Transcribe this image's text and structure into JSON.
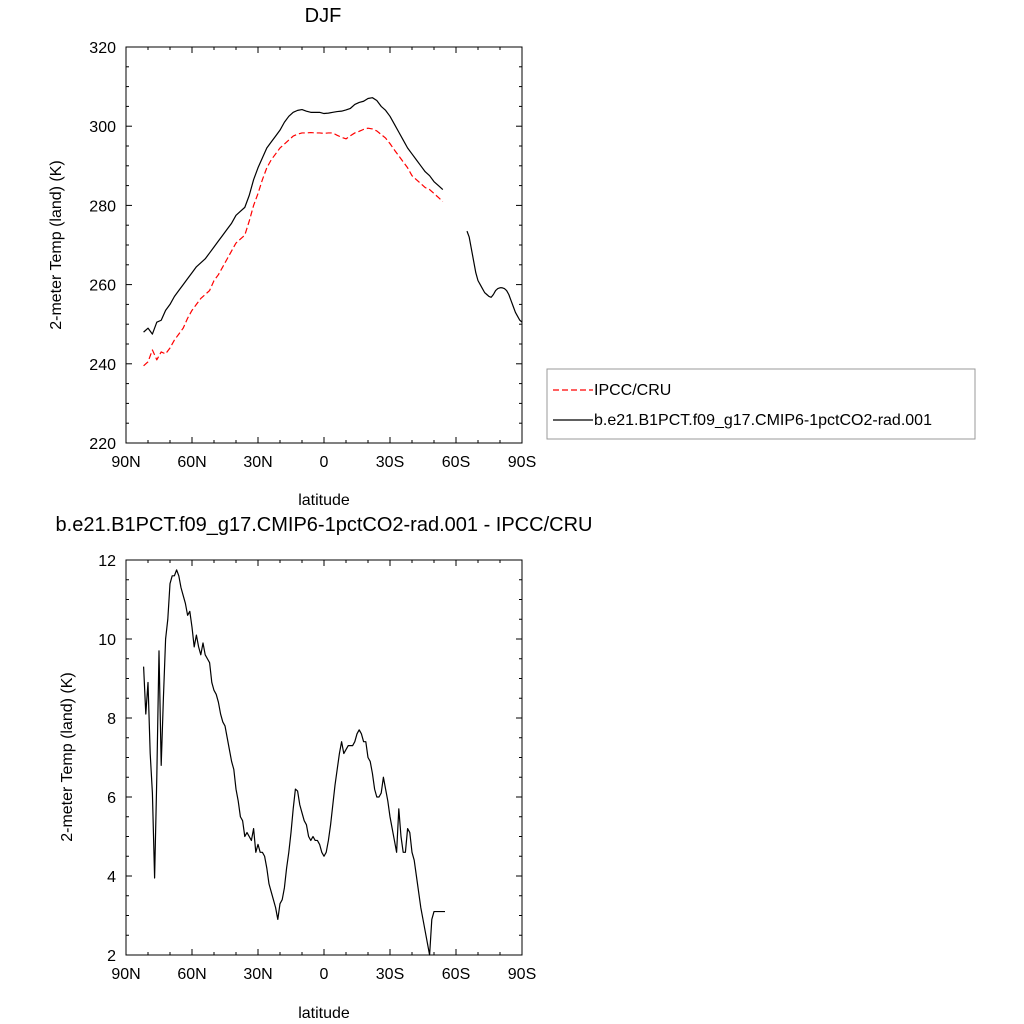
{
  "chart_data": [
    {
      "type": "line",
      "title": "DJF",
      "xlabel": "latitude",
      "ylabel": "2-meter Temp (land) (K)",
      "xlim": [
        -90,
        90
      ],
      "ylim": [
        220,
        320
      ],
      "x_ticks": [
        {
          "value": -90,
          "label": "90N"
        },
        {
          "value": -60,
          "label": "60N"
        },
        {
          "value": -30,
          "label": "30N"
        },
        {
          "value": 0,
          "label": "0"
        },
        {
          "value": 30,
          "label": "30S"
        },
        {
          "value": 60,
          "label": "60S"
        },
        {
          "value": 90,
          "label": "90S"
        }
      ],
      "y_ticks": [
        220,
        240,
        260,
        280,
        300,
        320
      ],
      "legend": "right",
      "grid": false,
      "series": [
        {
          "name": "IPCC/CRU",
          "color": "#ff0000",
          "style": "dashed",
          "x": [
            -82,
            -80,
            -78,
            -76,
            -74,
            -72,
            -70,
            -68,
            -66,
            -64,
            -62,
            -60,
            -58,
            -56,
            -54,
            -52,
            -50,
            -48,
            -46,
            -44,
            -42,
            -40,
            -38,
            -36,
            -34,
            -32,
            -30,
            -28,
            -26,
            -24,
            -22,
            -20,
            -18,
            -16,
            -14,
            -12,
            -10,
            -8,
            -6,
            -4,
            -2,
            0,
            2,
            4,
            6,
            8,
            10,
            12,
            14,
            16,
            18,
            20,
            22,
            24,
            26,
            28,
            30,
            32,
            34,
            36,
            38,
            40,
            42,
            44,
            46,
            48,
            50,
            52,
            54
          ],
          "y": [
            239.5,
            240.5,
            243.5,
            241,
            243,
            242.5,
            244,
            246,
            247.5,
            249,
            251.5,
            253.5,
            255,
            256.5,
            257.5,
            258.5,
            261,
            262.5,
            264.5,
            266.5,
            268.5,
            270.5,
            271.5,
            272.5,
            276,
            280,
            283,
            286.5,
            289.5,
            291.5,
            293,
            294.5,
            295.5,
            296.5,
            297.5,
            298,
            298.3,
            298.3,
            298.4,
            298.3,
            298.3,
            298.2,
            298.3,
            298.3,
            297.7,
            297.2,
            296.8,
            297.6,
            298.3,
            298.7,
            299.2,
            299.5,
            299.3,
            298.8,
            297.9,
            297,
            295.6,
            294,
            292.5,
            291,
            289.5,
            287.5,
            286.5,
            285.5,
            284.5,
            284,
            283,
            282,
            281
          ]
        },
        {
          "name": "b.e21.B1PCT.f09_g17.CMIP6-1pctCO2-rad.001",
          "color": "#000000",
          "style": "solid",
          "segments": [
            {
              "x": [
                -82,
                -80,
                -78,
                -76,
                -74,
                -72,
                -70,
                -68,
                -66,
                -64,
                -62,
                -60,
                -58,
                -56,
                -54,
                -52,
                -50,
                -48,
                -46,
                -44,
                -42,
                -40,
                -38,
                -36,
                -34,
                -32,
                -30,
                -28,
                -26,
                -24,
                -22,
                -20,
                -18,
                -16,
                -14,
                -12,
                -10,
                -8,
                -6,
                -4,
                -2,
                0,
                2,
                4,
                6,
                8,
                10,
                12,
                14,
                16,
                18,
                20,
                22,
                24,
                26,
                28,
                30,
                32,
                34,
                36,
                38,
                40,
                42,
                44,
                46,
                48,
                50,
                52,
                54
              ],
              "y": [
                248,
                249,
                247.5,
                250.5,
                251,
                253.5,
                255,
                257,
                258.5,
                260,
                261.5,
                263,
                264.5,
                265.5,
                266.5,
                268,
                269.5,
                271,
                272.5,
                274,
                275.5,
                277.5,
                278.5,
                279.5,
                282.5,
                286.5,
                289.5,
                292,
                294.5,
                296,
                297.5,
                299,
                301,
                302.5,
                303.5,
                304,
                304.2,
                303.8,
                303.5,
                303.5,
                303.5,
                303.2,
                303.3,
                303.5,
                303.7,
                303.8,
                304.1,
                304.5,
                305.5,
                306,
                306.3,
                307,
                307.2,
                306.5,
                305,
                304,
                302.5,
                300.5,
                298.5,
                296.5,
                294.5,
                293,
                291.5,
                290,
                288.5,
                287.5,
                286,
                285,
                284
              ]
            },
            {
              "x": [
                65,
                66,
                67,
                68,
                69,
                70,
                71,
                72,
                73,
                74,
                75,
                76,
                77,
                78,
                79,
                80,
                81,
                82,
                83,
                84,
                85,
                86,
                87,
                88,
                89,
                90
              ],
              "y": [
                273.5,
                272,
                269,
                266,
                263,
                261,
                260,
                259,
                258,
                257.5,
                257,
                256.8,
                257.5,
                258.5,
                259,
                259.2,
                259.2,
                259,
                258.5,
                257.5,
                256,
                254.5,
                253,
                252,
                251,
                250.5
              ]
            }
          ]
        }
      ]
    },
    {
      "type": "line",
      "title": "b.e21.B1PCT.f09_g17.CMIP6-1pctCO2-rad.001 - IPCC/CRU",
      "xlabel": "latitude",
      "ylabel": "2-meter Temp (land) (K)",
      "xlim": [
        -90,
        90
      ],
      "ylim": [
        2,
        12
      ],
      "x_ticks": [
        {
          "value": -90,
          "label": "90N"
        },
        {
          "value": -60,
          "label": "60N"
        },
        {
          "value": -30,
          "label": "30N"
        },
        {
          "value": 0,
          "label": "0"
        },
        {
          "value": 30,
          "label": "30S"
        },
        {
          "value": 60,
          "label": "60S"
        },
        {
          "value": 90,
          "label": "90S"
        }
      ],
      "y_ticks": [
        2,
        4,
        6,
        8,
        10,
        12
      ],
      "grid": false,
      "series": [
        {
          "color": "#000000",
          "style": "solid",
          "x": [
            -82,
            -81,
            -80,
            -79,
            -78,
            -77,
            -76,
            -75,
            -74,
            -73,
            -72,
            -71,
            -70,
            -69,
            -68,
            -67,
            -66,
            -65,
            -64,
            -63,
            -62,
            -61,
            -60,
            -59,
            -58,
            -57,
            -56,
            -55,
            -54,
            -53,
            -52,
            -51,
            -50,
            -49,
            -48,
            -47,
            -46,
            -45,
            -44,
            -43,
            -42,
            -41,
            -40,
            -39,
            -38,
            -37,
            -36,
            -35,
            -34,
            -33,
            -32,
            -31,
            -30,
            -29,
            -28,
            -27,
            -26,
            -25,
            -24,
            -23,
            -22,
            -21,
            -20,
            -19,
            -18,
            -17,
            -16,
            -15,
            -14,
            -13,
            -12,
            -11,
            -10,
            -9,
            -8,
            -7,
            -6,
            -5,
            -4,
            -3,
            -2,
            -1,
            0,
            1,
            2,
            3,
            4,
            5,
            6,
            7,
            8,
            9,
            10,
            11,
            12,
            13,
            14,
            15,
            16,
            17,
            18,
            19,
            20,
            21,
            22,
            23,
            24,
            25,
            26,
            27,
            28,
            29,
            30,
            31,
            32,
            33,
            34,
            35,
            36,
            37,
            38,
            39,
            40,
            41,
            42,
            43,
            44,
            45,
            46,
            47,
            48,
            49,
            50,
            51,
            52,
            53,
            54,
            55
          ],
          "y": [
            9.3,
            8.1,
            8.9,
            7.1,
            6.1,
            3.95,
            6.5,
            9.7,
            6.8,
            8.5,
            10,
            10.5,
            11.4,
            11.6,
            11.6,
            11.75,
            11.6,
            11.3,
            11.1,
            10.9,
            10.6,
            10.7,
            10.3,
            9.8,
            10.1,
            9.8,
            9.6,
            9.9,
            9.6,
            9.5,
            9.4,
            8.9,
            8.7,
            8.6,
            8.4,
            8.1,
            7.9,
            7.8,
            7.5,
            7.2,
            6.9,
            6.7,
            6.2,
            5.9,
            5.5,
            5.4,
            5.0,
            5.1,
            5.0,
            4.9,
            5.2,
            4.6,
            4.8,
            4.6,
            4.6,
            4.5,
            4.2,
            3.8,
            3.6,
            3.4,
            3.2,
            2.9,
            3.3,
            3.4,
            3.7,
            4.2,
            4.6,
            5.1,
            5.7,
            6.2,
            6.15,
            5.8,
            5.6,
            5.4,
            5.3,
            5.0,
            4.9,
            5.0,
            4.9,
            4.9,
            4.8,
            4.6,
            4.5,
            4.6,
            4.9,
            5.3,
            5.8,
            6.3,
            6.7,
            7.1,
            7.4,
            7.1,
            7.2,
            7.3,
            7.3,
            7.3,
            7.4,
            7.6,
            7.7,
            7.6,
            7.4,
            7.4,
            7.0,
            6.9,
            6.6,
            6.2,
            6.0,
            6.0,
            6.1,
            6.5,
            6.2,
            5.9,
            5.5,
            5.2,
            4.9,
            4.6,
            5.7,
            5.0,
            4.6,
            4.6,
            5.2,
            5.1,
            4.6,
            4.4,
            4.0,
            3.6,
            3.2,
            2.9,
            2.6,
            2.3,
            2.0,
            2.9,
            3.1,
            3.1,
            3.1,
            3.1,
            3.1,
            3.1
          ]
        }
      ]
    }
  ]
}
